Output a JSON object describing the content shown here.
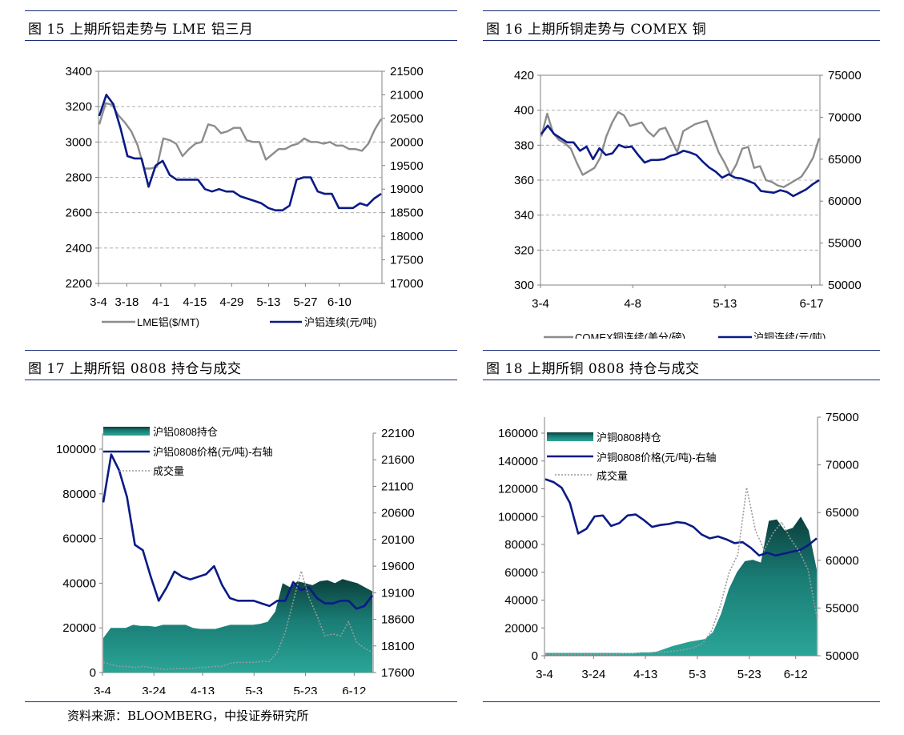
{
  "figures": [
    {
      "title": "图 15  上期所铝走势与 LME 铝三月"
    },
    {
      "title": "图 16  上期所铜走势与 COMEX 铜"
    },
    {
      "title": "图 17 上期所铝 0808 持仓与成交"
    },
    {
      "title": "图 18  上期所铜 0808 持仓与成交"
    }
  ],
  "source": "资料来源：BLOOMBERG，中投证券研究所",
  "chart_data": [
    {
      "type": "line",
      "x_ticks": [
        "3-4",
        "3-18",
        "4-1",
        "4-15",
        "4-29",
        "5-13",
        "5-27",
        "6-10"
      ],
      "y_left": {
        "ticks": [
          "3400",
          "3200",
          "3000",
          "2800",
          "2600",
          "2400",
          "2200"
        ],
        "range": [
          2200,
          3400
        ]
      },
      "y_right": {
        "ticks": [
          "21500",
          "21000",
          "20500",
          "20000",
          "19500",
          "19000",
          "18500",
          "18000",
          "17500",
          "17000"
        ],
        "range": [
          17000,
          21500
        ]
      },
      "grid": "horizontal dashed",
      "legend": "bottom",
      "series": [
        {
          "name": "LME铝($/MT)",
          "axis": "left",
          "color": "#8c8c8c",
          "values": [
            3100,
            3220,
            3210,
            3150,
            3110,
            3060,
            2980,
            2850,
            2850,
            2860,
            3020,
            3010,
            2990,
            2920,
            2960,
            2990,
            3000,
            3100,
            3090,
            3050,
            3060,
            3080,
            3080,
            3010,
            3000,
            3000,
            2900,
            2930,
            2960,
            2960,
            2980,
            2990,
            3020,
            3000,
            3000,
            2990,
            3000,
            2980,
            2980,
            2960,
            2960,
            2950,
            2990,
            3070,
            3130
          ]
        },
        {
          "name": "沪铝连续(元/吨)",
          "axis": "right",
          "color": "#0a1a86",
          "values": [
            20550,
            21000,
            20800,
            20300,
            19700,
            19650,
            19650,
            19050,
            19500,
            19600,
            19300,
            19200,
            19200,
            19200,
            19200,
            19000,
            18950,
            19000,
            18950,
            18950,
            18850,
            18800,
            18750,
            18700,
            18600,
            18550,
            18550,
            18650,
            19200,
            19250,
            19250,
            18950,
            18900,
            18900,
            18600,
            18600,
            18600,
            18700,
            18650,
            18800,
            18900
          ]
        }
      ]
    },
    {
      "type": "line",
      "x_ticks": [
        "3-4",
        "4-8",
        "5-13",
        "6-17"
      ],
      "y_left": {
        "ticks": [
          "420",
          "400",
          "380",
          "360",
          "340",
          "320",
          "300"
        ],
        "range": [
          300,
          420
        ]
      },
      "y_right": {
        "ticks": [
          "75000",
          "70000",
          "65000",
          "60000",
          "55000",
          "50000"
        ],
        "range": [
          50000,
          75000
        ]
      },
      "grid": "horizontal dashed",
      "legend": "bottom",
      "series": [
        {
          "name": "COMEX铜连续(美分/磅)",
          "axis": "left",
          "color": "#8c8c8c",
          "values": [
            385,
            398,
            387,
            383,
            381,
            378,
            370,
            363,
            365,
            367,
            373,
            385,
            393,
            399,
            397,
            391,
            392,
            393,
            388,
            385,
            389,
            390,
            383,
            376,
            388,
            390,
            392,
            393,
            394,
            385,
            376,
            370,
            363,
            369,
            378,
            379,
            367,
            368,
            360,
            359,
            357,
            356,
            358,
            360,
            362,
            367,
            373,
            384
          ]
        },
        {
          "name": "沪铜连续(元/吨)",
          "axis": "right",
          "color": "#0a1a86",
          "values": [
            68000,
            69000,
            68000,
            67500,
            67000,
            67000,
            66000,
            66500,
            65000,
            66300,
            65500,
            65700,
            66700,
            66400,
            66500,
            65500,
            64600,
            64900,
            64900,
            65000,
            65400,
            65600,
            66000,
            65800,
            65500,
            64700,
            64000,
            63500,
            62800,
            63200,
            62800,
            62700,
            62400,
            62100,
            61200,
            61100,
            61000,
            61300,
            61100,
            60600,
            61000,
            61400,
            62000,
            62500
          ]
        }
      ]
    },
    {
      "type": "area",
      "x_ticks": [
        "3-4",
        "3-24",
        "4-13",
        "5-3",
        "5-23",
        "6-12"
      ],
      "y_left": {
        "ticks": [
          "100000",
          "80000",
          "60000",
          "40000",
          "20000",
          "0"
        ],
        "range": [
          0,
          110000
        ]
      },
      "y_right": {
        "ticks": [
          "22100",
          "21600",
          "21100",
          "20600",
          "20100",
          "19600",
          "19100",
          "18600",
          "18100",
          "17600"
        ],
        "range": [
          17600,
          22100
        ]
      },
      "legend": "top-left",
      "series": [
        {
          "name": "沪铝0808持仓",
          "axis": "left",
          "kind": "area",
          "color": "#1a8a80",
          "values": [
            17000,
            22000,
            22000,
            22000,
            23500,
            23000,
            23000,
            22500,
            23500,
            23500,
            23500,
            23500,
            22000,
            21500,
            21500,
            21500,
            22500,
            23500,
            23500,
            23500,
            23500,
            24000,
            25000,
            30000,
            44000,
            42000,
            45000,
            44000,
            43000,
            45000,
            45500,
            44000,
            46000,
            45000,
            44000,
            42000,
            40000
          ]
        },
        {
          "name": "沪铝0808价格(元/吨)-右轴",
          "axis": "right",
          "kind": "line",
          "color": "#0a1a86",
          "values": [
            20800,
            21700,
            21400,
            20900,
            20000,
            19900,
            19400,
            18950,
            19200,
            19500,
            19400,
            19350,
            19400,
            19450,
            19600,
            19250,
            19000,
            18950,
            18950,
            18950,
            18900,
            18850,
            18950,
            18950,
            19300,
            19150,
            19200,
            19000,
            18900,
            18900,
            18950,
            18950,
            18800,
            18850,
            19050
          ]
        },
        {
          "name": "成交量",
          "axis": "left",
          "kind": "dotted",
          "color": "#9a9a9a",
          "values": [
            5000,
            4000,
            3000,
            3000,
            2500,
            3000,
            2500,
            2000,
            1500,
            2000,
            2000,
            2000,
            2500,
            2500,
            3000,
            3000,
            4500,
            5000,
            5000,
            5000,
            5500,
            5500,
            10000,
            20000,
            35000,
            50000,
            37000,
            28000,
            18000,
            19000,
            18000,
            25000,
            15000,
            12000,
            10000
          ]
        }
      ]
    },
    {
      "type": "area",
      "x_ticks": [
        "3-4",
        "3-24",
        "4-13",
        "5-3",
        "5-23",
        "6-12"
      ],
      "y_left": {
        "ticks": [
          "160000",
          "140000",
          "120000",
          "100000",
          "80000",
          "60000",
          "40000",
          "20000",
          "0"
        ],
        "range": [
          0,
          160000
        ]
      },
      "y_right": {
        "ticks": [
          "75000",
          "70000",
          "65000",
          "60000",
          "55000",
          "50000"
        ],
        "range": [
          50000,
          75000
        ]
      },
      "legend": "top-left",
      "series": [
        {
          "name": "沪铜0808持仓",
          "axis": "left",
          "kind": "area",
          "color": "#1a8a80",
          "values": [
            2000,
            2000,
            2000,
            2000,
            2000,
            2000,
            2000,
            2000,
            2000,
            2000,
            2000,
            2000,
            2500,
            2500,
            3000,
            5000,
            7000,
            8500,
            10000,
            11000,
            12000,
            17000,
            30000,
            48000,
            60000,
            68000,
            69000,
            67000,
            97000,
            98000,
            90000,
            92000,
            100000,
            90000,
            62000
          ]
        },
        {
          "name": "沪铜0808价格(元/吨)-右轴",
          "axis": "right",
          "kind": "line",
          "color": "#0a1a86",
          "values": [
            68500,
            68200,
            67600,
            66000,
            62800,
            63300,
            64600,
            64700,
            63600,
            63900,
            64700,
            64800,
            64200,
            63500,
            63700,
            63800,
            64000,
            63900,
            63500,
            62700,
            62300,
            62500,
            62200,
            61800,
            61900,
            61300,
            60500,
            60800,
            60500,
            60700,
            60900,
            61100,
            61600,
            62300
          ]
        },
        {
          "name": "成交量",
          "axis": "left",
          "kind": "dotted",
          "color": "#9a9a9a",
          "values": [
            1000,
            1000,
            1000,
            1000,
            1000,
            1000,
            1000,
            1000,
            1000,
            1500,
            1500,
            2000,
            2000,
            2500,
            3000,
            3500,
            4500,
            6000,
            9000,
            18000,
            36000,
            60000,
            73000,
            121000,
            90000,
            76000,
            88000,
            96000,
            84000,
            75000,
            62000,
            28000
          ]
        }
      ]
    }
  ]
}
